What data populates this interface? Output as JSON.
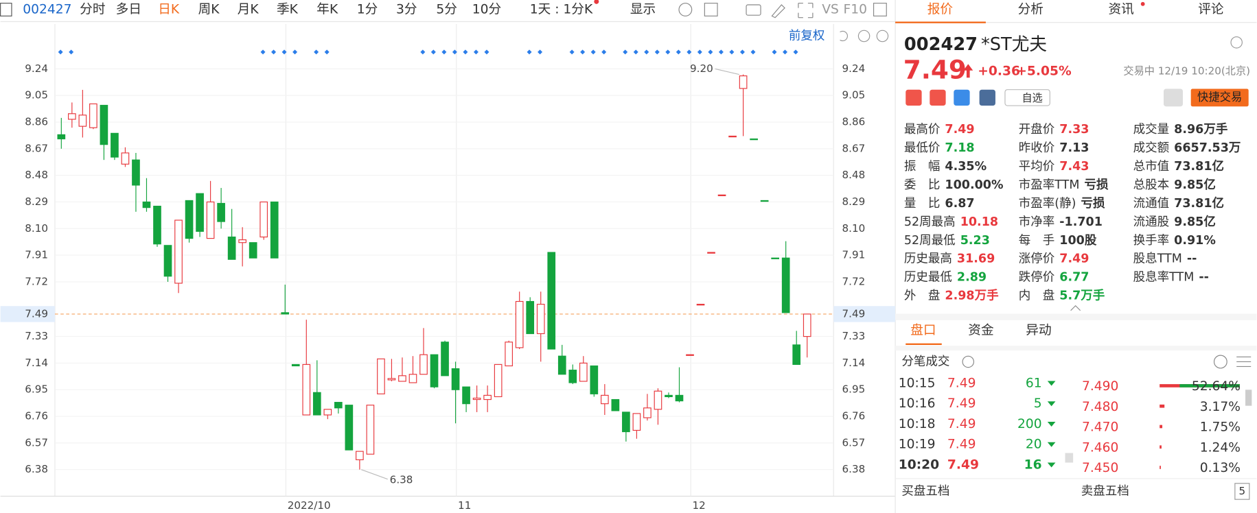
{
  "toolbar": {
    "code": "002427",
    "periods": [
      "分时",
      "多日",
      "日K",
      "周K",
      "月K",
      "季K",
      "年K",
      "1分",
      "3分",
      "5分",
      "10分"
    ],
    "active_period": 2,
    "interval": "1天 : 1分K",
    "display": "显示",
    "vs": "VS",
    "f10": "F10",
    "adjust": "前复权"
  },
  "chart_data": {
    "type": "candlestick",
    "categories": [
      null,
      null,
      null,
      null,
      null,
      null,
      null,
      null,
      null,
      null,
      null,
      null,
      null,
      null,
      null,
      null,
      null,
      null,
      null,
      null,
      null,
      "2022/10",
      null,
      null,
      null,
      null,
      null,
      null,
      null,
      null,
      null,
      null,
      null,
      null,
      null,
      null,
      null,
      "11",
      null,
      null,
      null,
      null,
      null,
      null,
      null,
      null,
      null,
      null,
      null,
      null,
      null,
      null,
      null,
      null,
      null,
      null,
      null,
      null,
      null,
      "12",
      null,
      null,
      null,
      null,
      null,
      null,
      null,
      null,
      null,
      null,
      null
    ],
    "open": [
      8.77,
      8.88,
      8.83,
      8.82,
      8.98,
      8.78,
      8.56,
      8.59,
      8.29,
      8.26,
      7.98,
      7.71,
      8.3,
      8.35,
      8.03,
      8.28,
      8.04,
      8.0,
      8.0,
      8.04,
      8.29,
      7.5,
      7.13,
      6.77,
      6.93,
      6.77,
      6.86,
      6.84,
      6.45,
      6.49,
      6.92,
      7.02,
      7.01,
      7.0,
      7.06,
      7.2,
      7.29,
      7.1,
      6.97,
      6.88,
      6.88,
      6.9,
      7.12,
      7.25,
      7.58,
      7.35,
      7.93,
      7.19,
      7.09,
      7.01,
      7.12,
      6.85,
      6.88,
      6.79,
      6.66,
      6.75,
      6.81,
      6.91,
      6.91,
      7.2,
      7.56,
      7.93,
      8.34,
      8.76,
      9.1,
      8.74,
      8.3,
      7.89,
      7.89,
      7.27,
      7.33
    ],
    "high": [
      8.89,
      9.0,
      9.09,
      8.99,
      8.98,
      8.78,
      8.68,
      8.64,
      8.46,
      8.26,
      7.98,
      8.16,
      8.3,
      8.35,
      8.44,
      8.39,
      8.24,
      8.11,
      8.0,
      8.29,
      8.29,
      7.7,
      7.13,
      7.45,
      7.16,
      6.81,
      6.86,
      6.84,
      6.51,
      6.84,
      7.17,
      7.17,
      7.18,
      7.19,
      7.39,
      7.2,
      7.3,
      7.15,
      6.97,
      6.98,
      6.98,
      7.13,
      7.3,
      7.65,
      7.61,
      7.65,
      7.93,
      7.27,
      7.13,
      7.19,
      7.12,
      6.99,
      6.88,
      6.79,
      6.78,
      6.92,
      6.96,
      6.93,
      7.11,
      7.2,
      7.56,
      7.93,
      8.34,
      8.76,
      9.2,
      8.74,
      8.3,
      7.89,
      8.01,
      7.37,
      7.49
    ],
    "low": [
      8.67,
      8.82,
      8.75,
      8.81,
      8.59,
      8.59,
      8.54,
      8.22,
      8.22,
      7.97,
      7.72,
      7.64,
      8.0,
      8.04,
      8.03,
      8.1,
      7.88,
      7.83,
      7.89,
      8.02,
      7.89,
      7.49,
      7.12,
      6.77,
      6.77,
      6.74,
      6.78,
      6.52,
      6.38,
      6.49,
      6.92,
      7.01,
      7.01,
      7.0,
      7.06,
      6.96,
      7.05,
      6.71,
      6.79,
      6.79,
      6.79,
      6.9,
      7.12,
      7.24,
      7.35,
      7.15,
      7.24,
      7.06,
      6.99,
      7.01,
      6.9,
      6.77,
      6.8,
      6.58,
      6.6,
      6.73,
      6.7,
      6.89,
      6.86,
      7.2,
      7.56,
      7.93,
      8.34,
      8.76,
      8.76,
      8.74,
      8.3,
      7.89,
      7.5,
      7.13,
      7.18
    ],
    "close": [
      8.74,
      8.92,
      8.91,
      8.99,
      8.7,
      8.61,
      8.64,
      8.41,
      8.25,
      7.99,
      7.76,
      8.16,
      8.03,
      8.08,
      8.29,
      8.15,
      7.88,
      8.02,
      7.89,
      8.29,
      7.89,
      7.49,
      7.12,
      7.13,
      6.77,
      6.81,
      6.82,
      6.52,
      6.51,
      6.84,
      7.17,
      7.03,
      7.05,
      7.06,
      7.2,
      6.97,
      7.05,
      6.95,
      6.85,
      6.89,
      6.91,
      7.13,
      7.29,
      7.58,
      7.35,
      7.56,
      7.24,
      7.06,
      7.0,
      7.14,
      6.92,
      6.91,
      6.8,
      6.65,
      6.78,
      6.82,
      6.94,
      6.9,
      6.87,
      7.2,
      7.56,
      7.93,
      8.34,
      8.76,
      9.19,
      8.74,
      8.3,
      7.89,
      7.5,
      7.13,
      7.49
    ],
    "up_color": "#e8383d",
    "down_color": "#14a43e",
    "ylim": [
      6.19,
      9.56
    ],
    "yticks": [
      9.24,
      9.05,
      8.86,
      8.67,
      8.48,
      8.29,
      {
        "value": 8.1,
        "label": "8.10"
      },
      7.91,
      7.72,
      7.33,
      7.14,
      6.95,
      6.76,
      6.57,
      6.38
    ],
    "last_price": 7.49,
    "annotations": [
      {
        "value": 9.2,
        "label": "9.20"
      },
      {
        "value": 6.38,
        "label": "6.38"
      }
    ],
    "grid": true
  },
  "quote_panel": {
    "tabs": [
      "报价",
      "分析",
      "资讯",
      "评论"
    ],
    "code": "002427",
    "name": "*ST尤夫",
    "price": "7.49",
    "change": "+0.36",
    "change_pct": "+5.05%",
    "status": "交易中 12/19 10:20(北京)",
    "watch": "自选",
    "trade": "快捷交易",
    "stats": [
      [
        {
          "label": "最高价",
          "value": "7.49",
          "color": "#e8383d"
        },
        {
          "label": "最低价",
          "value": "7.18",
          "color": "#14a43e"
        },
        {
          "label": "振　幅",
          "value": "4.35%",
          "color": "#333"
        },
        {
          "label": "委　比",
          "value": "100.00%",
          "color": "#333"
        },
        {
          "label": "量　比",
          "value": "6.87",
          "color": "#333"
        },
        {
          "label": "52周最高",
          "value": "10.18",
          "color": "#e8383d"
        },
        {
          "label": "52周最低",
          "value": "5.23",
          "color": "#14a43e"
        },
        {
          "label": "历史最高",
          "value": "31.69",
          "color": "#e8383d"
        },
        {
          "label": "历史最低",
          "value": "2.89",
          "color": "#14a43e"
        },
        {
          "label": "外　盘",
          "value": "2.98万手",
          "color": "#e8383d"
        }
      ],
      [
        {
          "label": "开盘价",
          "value": "7.33",
          "color": "#e8383d"
        },
        {
          "label": "昨收价",
          "value": "7.13",
          "color": "#333"
        },
        {
          "label": "平均价",
          "value": "7.43",
          "color": "#e8383d"
        },
        {
          "label": "市盈率TTM",
          "value": "亏损",
          "color": "#333"
        },
        {
          "label": "市盈率(静)",
          "value": "亏损",
          "color": "#333"
        },
        {
          "label": "市净率",
          "value": "-1.701",
          "color": "#333"
        },
        {
          "label": "每　手",
          "value": "100股",
          "color": "#333"
        },
        {
          "label": "涨停价",
          "value": "7.49",
          "color": "#e8383d"
        },
        {
          "label": "跌停价",
          "value": "6.77",
          "color": "#14a43e"
        },
        {
          "label": "内　盘",
          "value": "5.7万手",
          "color": "#14a43e"
        }
      ],
      [
        {
          "label": "成交量",
          "value": "8.96万手",
          "color": "#333"
        },
        {
          "label": "成交额",
          "value": "6657.53万",
          "color": "#333"
        },
        {
          "label": "总市值",
          "value": "73.81亿",
          "color": "#333"
        },
        {
          "label": "总股本",
          "value": "9.85亿",
          "color": "#333"
        },
        {
          "label": "流通值",
          "value": "73.81亿",
          "color": "#333"
        },
        {
          "label": "流通股",
          "value": "9.85亿",
          "color": "#333"
        },
        {
          "label": "换手率",
          "value": "0.91%",
          "color": "#333"
        },
        {
          "label": "股息TTM",
          "value": "--",
          "color": "#333"
        },
        {
          "label": "股息率TTM",
          "value": "--",
          "color": "#333"
        }
      ]
    ],
    "detail_tabs": [
      "盘口",
      "资金",
      "异动"
    ],
    "trades_title": "分笔成交",
    "trades": [
      {
        "time": "10:15",
        "price": "7.49",
        "volume": "61"
      },
      {
        "time": "10:16",
        "price": "7.49",
        "volume": "5"
      },
      {
        "time": "10:18",
        "price": "7.49",
        "volume": "200"
      },
      {
        "time": "10:19",
        "price": "7.49",
        "volume": "20"
      },
      {
        "time": "10:20",
        "price": "7.49",
        "volume": "16"
      }
    ],
    "price_dist": [
      {
        "price": "7.490",
        "pct": 52.64,
        "pct_label": "52.64%"
      },
      {
        "price": "7.480",
        "pct": 3.17,
        "pct_label": "3.17%"
      },
      {
        "price": "7.470",
        "pct": 1.75,
        "pct_label": "1.75%"
      },
      {
        "price": "7.460",
        "pct": 1.24,
        "pct_label": "1.24%"
      },
      {
        "price": "7.450",
        "pct": 0.13,
        "pct_label": "0.13%"
      }
    ],
    "book_titles": [
      "买盘五档",
      "卖盘五档"
    ],
    "page_number": "5"
  }
}
